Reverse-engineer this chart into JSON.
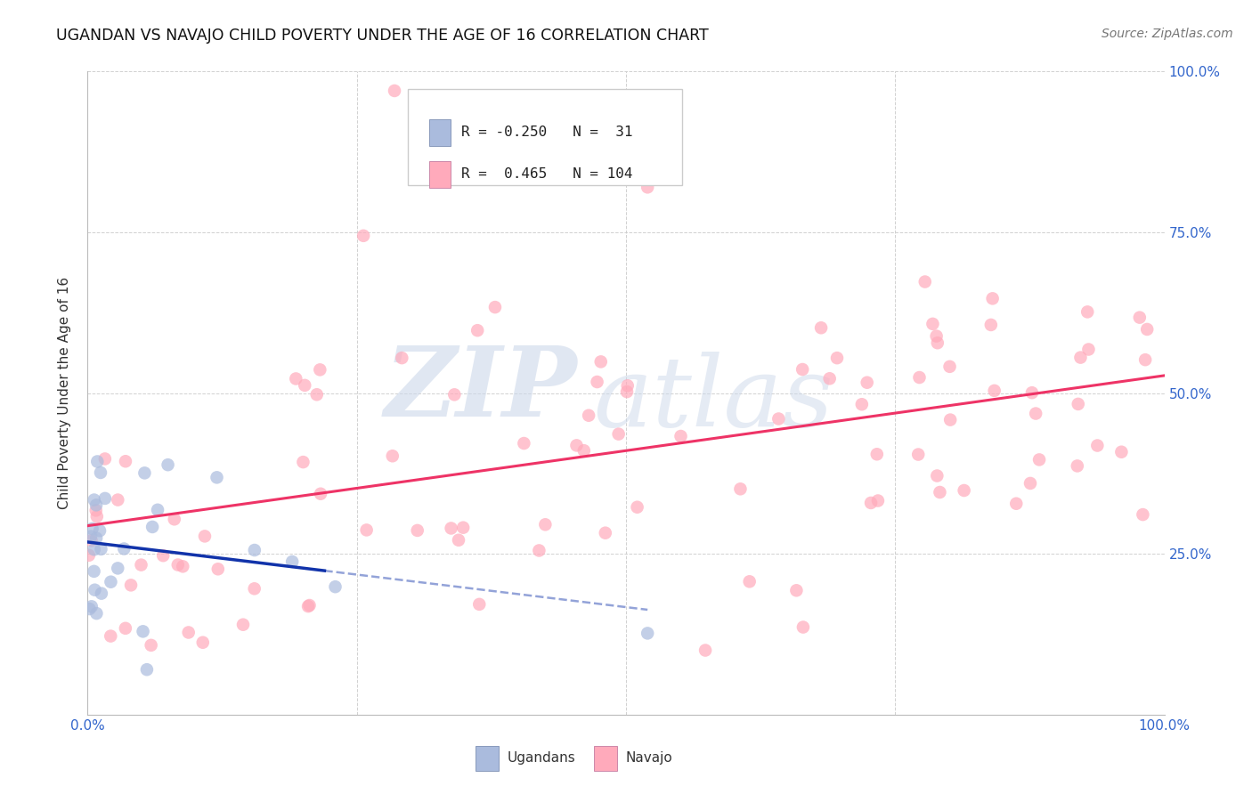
{
  "title": "UGANDAN VS NAVAJO CHILD POVERTY UNDER THE AGE OF 16 CORRELATION CHART",
  "source": "Source: ZipAtlas.com",
  "ylabel": "Child Poverty Under the Age of 16",
  "xlim": [
    0,
    1
  ],
  "ylim": [
    0,
    1
  ],
  "ugandan_color": "#aabbdd",
  "navajo_color": "#ffaabb",
  "regression_ugandan_color": "#1133aa",
  "regression_navajo_color": "#ee3366",
  "background_color": "#ffffff",
  "grid_color": "#cccccc",
  "axis_label_color": "#3366cc",
  "title_color": "#111111",
  "source_color": "#777777",
  "r_ugandan": -0.25,
  "n_ugandan": 31,
  "r_navajo": 0.465,
  "n_navajo": 104
}
